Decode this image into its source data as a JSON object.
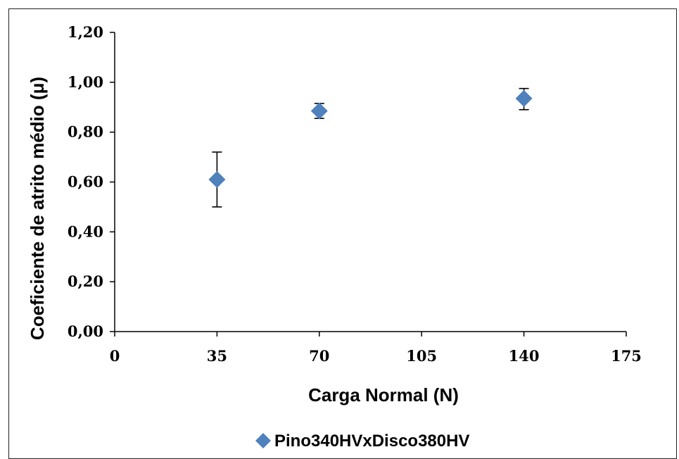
{
  "chart_data": {
    "type": "scatter",
    "xlabel": "Carga Normal (N)",
    "ylabel": "Coeficiente de atrito médio (μ)",
    "xlim": [
      0,
      175
    ],
    "ylim": [
      0,
      1.2
    ],
    "x_ticks": [
      0,
      35,
      70,
      105,
      140,
      175
    ],
    "x_tick_labels": [
      "0",
      "35",
      "70",
      "105",
      "140",
      "175"
    ],
    "y_ticks": [
      0,
      0.2,
      0.4,
      0.6,
      0.8,
      1.0,
      1.2
    ],
    "y_tick_labels": [
      "0,00",
      "0,20",
      "0,40",
      "0,60",
      "0,80",
      "1,00",
      "1,20"
    ],
    "grid": false,
    "legend_position": "bottom",
    "series": [
      {
        "name": "Pino340HVxDisco380HV",
        "color": "#4f81bd",
        "marker": "diamond",
        "points": [
          {
            "x": 35,
            "y": 0.61,
            "err_low": 0.5,
            "err_high": 0.72
          },
          {
            "x": 70,
            "y": 0.885,
            "err_low": 0.855,
            "err_high": 0.915
          },
          {
            "x": 140,
            "y": 0.935,
            "err_low": 0.89,
            "err_high": 0.975
          }
        ]
      }
    ]
  }
}
